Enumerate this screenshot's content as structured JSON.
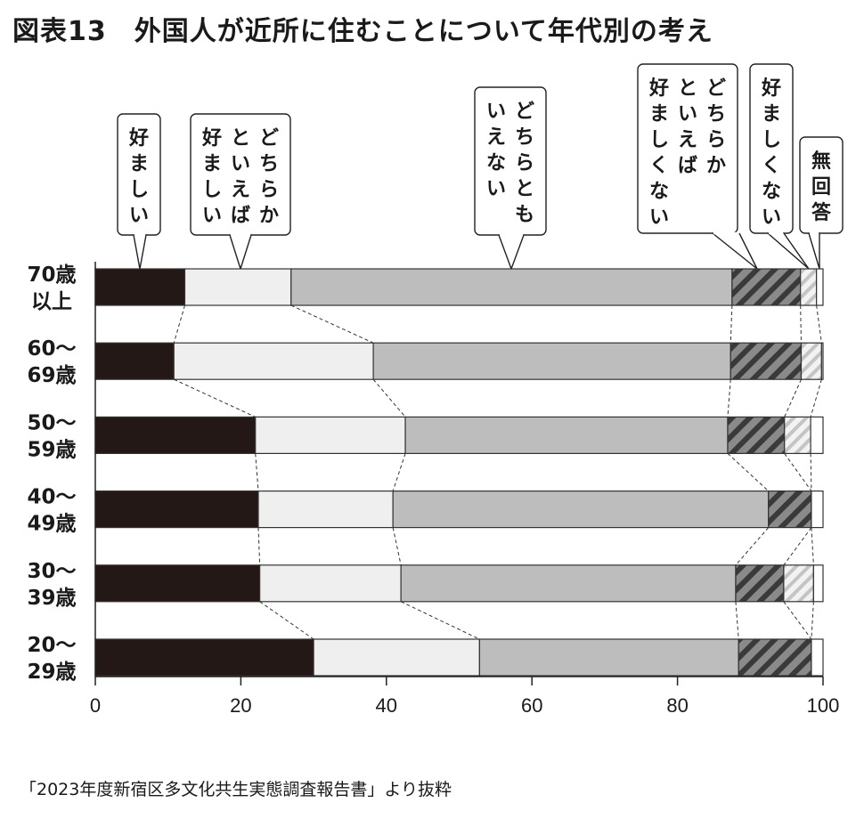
{
  "title": "図表13　外国人が近所に住むことについて年代別の考え",
  "source": "「2023年度新宿区多文化共生実態調査報告書」より抜粋",
  "chart_data": {
    "type": "bar",
    "orientation": "horizontal",
    "stacked": true,
    "categories": [
      [
        "70歳",
        "以上"
      ],
      [
        "60〜",
        "69歳"
      ],
      [
        "50〜",
        "59歳"
      ],
      [
        "40〜",
        "49歳"
      ],
      [
        "30〜",
        "39歳"
      ],
      [
        "20〜",
        "29歳"
      ]
    ],
    "series": [
      {
        "name": "好ましい",
        "legend_columns": [
          "好ましい"
        ],
        "fill": "solid-black",
        "values": [
          12.3,
          10.8,
          22.0,
          22.4,
          22.6,
          30.0
        ]
      },
      {
        "name": "どちらかといえば好ましい",
        "legend_columns": [
          "どちらか",
          "といえば",
          "好ましい"
        ],
        "fill": "light-gray",
        "values": [
          14.6,
          27.4,
          20.6,
          18.5,
          19.4,
          22.8
        ]
      },
      {
        "name": "どちらともいえない",
        "legend_columns": [
          "どちらとも",
          "いえない"
        ],
        "fill": "mid-gray",
        "values": [
          60.6,
          49.1,
          44.3,
          51.6,
          46.0,
          35.6
        ]
      },
      {
        "name": "どちらかといえば好ましくない",
        "legend_columns": [
          "どちらか",
          "といえば",
          "好ましくない"
        ],
        "fill": "dark-hatch",
        "values": [
          9.4,
          9.7,
          7.8,
          5.9,
          6.6,
          10.0
        ]
      },
      {
        "name": "好ましくない",
        "legend_columns": [
          "好ましくない"
        ],
        "fill": "light-hatch",
        "values": [
          2.2,
          2.8,
          3.6,
          0.0,
          4.1,
          0.0
        ]
      },
      {
        "name": "無回答",
        "legend_columns": [
          "無回答"
        ],
        "fill": "white",
        "values": [
          0.9,
          0.2,
          1.7,
          1.6,
          1.3,
          1.6
        ]
      }
    ],
    "xlim": [
      0,
      100
    ],
    "xticks": [
      0,
      20,
      40,
      60,
      80,
      100
    ],
    "colors": {
      "solid-black": "#231815",
      "light-gray": "#efefef",
      "mid-gray": "#bdbdbd",
      "hatch-dark-bg": "#8a8a8a",
      "hatch-dark-line": "#3a3a3a",
      "hatch-light-bg": "#f2f2f2",
      "hatch-light-line": "#c4c4c4",
      "white": "#ffffff",
      "stroke": "#333333"
    }
  }
}
